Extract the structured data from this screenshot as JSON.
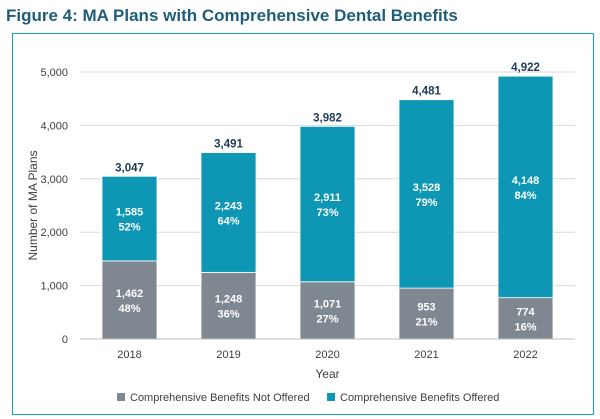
{
  "title": "Figure 4: MA Plans with Comprehensive Dental Benefits",
  "colors": {
    "not_offered": "#7f8890",
    "offered": "#0e97b4",
    "gridline": "#d9d9d9",
    "axis": "#bfbfbf"
  },
  "chart_data": {
    "type": "bar",
    "stacked": true,
    "title": "Figure 4: MA Plans with Comprehensive Dental Benefits",
    "xlabel": "Year",
    "ylabel": "Number of MA Plans",
    "ylim": [
      0,
      5000
    ],
    "yticks": [
      0,
      1000,
      2000,
      3000,
      4000,
      5000
    ],
    "ytick_labels": [
      "0",
      "1,000",
      "2,000",
      "3,000",
      "4,000",
      "5,000"
    ],
    "grid": true,
    "legend_position": "bottom",
    "categories": [
      "2018",
      "2019",
      "2020",
      "2021",
      "2022"
    ],
    "totals": [
      3047,
      3491,
      3982,
      4481,
      4922
    ],
    "total_labels": [
      "3,047",
      "3,491",
      "3,982",
      "4,481",
      "4,922"
    ],
    "series": [
      {
        "name": "Comprehensive Benefits Not Offered",
        "color": "#7f8890",
        "values": [
          1462,
          1248,
          1071,
          953,
          774
        ],
        "value_labels": [
          "1,462",
          "1,248",
          "1,071",
          "953",
          "774"
        ],
        "percent_labels": [
          "48%",
          "36%",
          "27%",
          "21%",
          "16%"
        ]
      },
      {
        "name": "Comprehensive Benefits Offered",
        "color": "#0e97b4",
        "values": [
          1585,
          2243,
          2911,
          3528,
          4148
        ],
        "value_labels": [
          "1,585",
          "2,243",
          "2,911",
          "3,528",
          "4,148"
        ],
        "percent_labels": [
          "52%",
          "64%",
          "73%",
          "79%",
          "84%"
        ]
      }
    ]
  }
}
